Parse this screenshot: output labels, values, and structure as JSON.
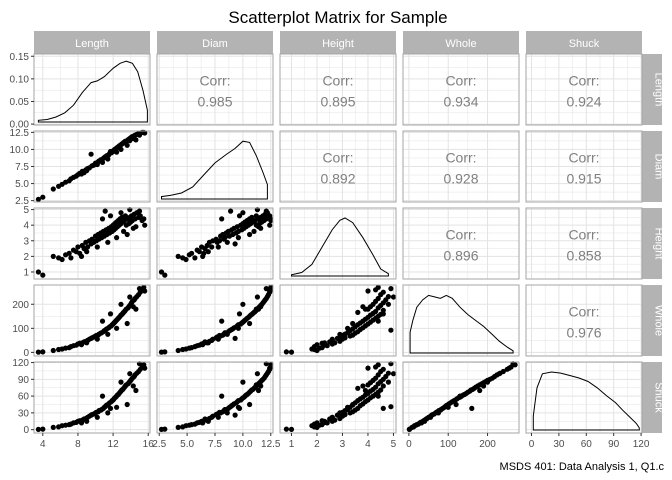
{
  "chart_data": {
    "type": "scatter",
    "title": "Scatterplot Matrix for Sample",
    "caption": "MSDS 401: Data Analysis 1, Q1.c",
    "variables": [
      "Length",
      "Diam",
      "Height",
      "Whole",
      "Shuck"
    ],
    "grid": true,
    "colors": {
      "strip": "#b3b3b3",
      "strip_text": "#ffffff",
      "panel_border": "#a6a6a6",
      "grid": "#e3e3e3",
      "points": "#000000",
      "corr_text": "#808080"
    },
    "axes": {
      "x_ranges": [
        [
          3,
          16.2
        ],
        [
          2.3,
          12.7
        ],
        [
          0.55,
          5.1
        ],
        [
          -15,
          280
        ],
        [
          -6,
          121
        ]
      ],
      "x_ticks": [
        [
          4,
          8,
          12,
          16
        ],
        [
          2.5,
          5.0,
          7.5,
          10.0,
          12.5
        ],
        [
          1,
          2,
          3,
          4,
          5
        ],
        [
          0,
          100,
          200
        ],
        [
          0,
          30,
          60,
          90,
          120
        ]
      ],
      "x_tick_labels": [
        [
          "4",
          "8",
          "12",
          "16"
        ],
        [
          "2.5",
          "5.0",
          "7.5",
          "10.0",
          "12.5"
        ],
        [
          "1",
          "2",
          "3",
          "4",
          "5"
        ],
        [
          "0",
          "100",
          "200"
        ],
        [
          "0",
          "30",
          "60",
          "90",
          "120"
        ]
      ],
      "y_ranges": [
        [
          -0.002,
          0.155
        ],
        [
          2.3,
          12.7
        ],
        [
          0.55,
          5.1
        ],
        [
          -15,
          280
        ],
        [
          -6,
          121
        ]
      ],
      "y_ticks": [
        [
          0.0,
          0.05,
          0.1,
          0.15
        ],
        [
          2.5,
          5.0,
          7.5,
          10.0,
          12.5
        ],
        [
          1,
          2,
          3,
          4,
          5
        ],
        [
          0,
          100,
          200
        ],
        [
          0,
          30,
          60,
          90,
          120
        ]
      ],
      "y_tick_labels": [
        [
          "0.00",
          "0.05",
          "0.10",
          "0.15"
        ],
        [
          "2.5",
          "5.0",
          "7.5",
          "10.0",
          "12.5"
        ],
        [
          "1",
          "2",
          "3",
          "4",
          "5"
        ],
        [
          "0",
          "100",
          "200"
        ],
        [
          "0",
          "30",
          "60",
          "90",
          "120"
        ]
      ]
    },
    "correlations": [
      {
        "row": "Length",
        "col": "Diam",
        "label": "Corr:",
        "value": "0.985"
      },
      {
        "row": "Length",
        "col": "Height",
        "label": "Corr:",
        "value": "0.895"
      },
      {
        "row": "Length",
        "col": "Whole",
        "label": "Corr:",
        "value": "0.934"
      },
      {
        "row": "Length",
        "col": "Shuck",
        "label": "Corr:",
        "value": "0.924"
      },
      {
        "row": "Diam",
        "col": "Height",
        "label": "Corr:",
        "value": "0.892"
      },
      {
        "row": "Diam",
        "col": "Whole",
        "label": "Corr:",
        "value": "0.928"
      },
      {
        "row": "Diam",
        "col": "Shuck",
        "label": "Corr:",
        "value": "0.915"
      },
      {
        "row": "Height",
        "col": "Whole",
        "label": "Corr:",
        "value": "0.896"
      },
      {
        "row": "Height",
        "col": "Shuck",
        "label": "Corr:",
        "value": "0.858"
      },
      {
        "row": "Whole",
        "col": "Shuck",
        "label": "Corr:",
        "value": "0.976"
      }
    ],
    "densities": {
      "Length": [
        [
          3.5,
          0.004
        ],
        [
          4.5,
          0.006
        ],
        [
          5.5,
          0.012
        ],
        [
          6.5,
          0.022
        ],
        [
          7.5,
          0.04
        ],
        [
          8.5,
          0.07
        ],
        [
          9.5,
          0.094
        ],
        [
          10.2,
          0.098
        ],
        [
          11,
          0.108
        ],
        [
          12,
          0.128
        ],
        [
          12.8,
          0.14
        ],
        [
          13.5,
          0.145
        ],
        [
          14.2,
          0.14
        ],
        [
          14.8,
          0.12
        ],
        [
          15.4,
          0.075
        ],
        [
          15.9,
          0.028
        ]
      ],
      "Diam": [
        [
          2.7,
          0.02
        ],
        [
          3.5,
          0.03
        ],
        [
          4.5,
          0.05
        ],
        [
          5.5,
          0.1
        ],
        [
          6.5,
          0.2
        ],
        [
          7.5,
          0.3
        ],
        [
          8.5,
          0.37
        ],
        [
          9.3,
          0.42
        ],
        [
          10,
          0.48
        ],
        [
          10.6,
          0.47
        ],
        [
          11.2,
          0.36
        ],
        [
          11.8,
          0.22
        ],
        [
          12.2,
          0.12
        ]
      ],
      "Height": [
        [
          1.0,
          0.01
        ],
        [
          1.4,
          0.03
        ],
        [
          1.8,
          0.1
        ],
        [
          2.2,
          0.25
        ],
        [
          2.6,
          0.4
        ],
        [
          2.9,
          0.48
        ],
        [
          3.1,
          0.5
        ],
        [
          3.4,
          0.46
        ],
        [
          3.8,
          0.33
        ],
        [
          4.2,
          0.18
        ],
        [
          4.5,
          0.06
        ],
        [
          4.8,
          0.02
        ]
      ],
      "Whole": [
        [
          3,
          0.0028
        ],
        [
          10,
          0.0044
        ],
        [
          20,
          0.0062
        ],
        [
          35,
          0.0072
        ],
        [
          50,
          0.0078
        ],
        [
          65,
          0.0076
        ],
        [
          80,
          0.0074
        ],
        [
          95,
          0.0078
        ],
        [
          110,
          0.0074
        ],
        [
          130,
          0.0062
        ],
        [
          150,
          0.0052
        ],
        [
          170,
          0.0044
        ],
        [
          190,
          0.0036
        ],
        [
          210,
          0.0026
        ],
        [
          230,
          0.0016
        ],
        [
          250,
          0.0008
        ],
        [
          265,
          0.0003
        ]
      ],
      "Shuck": [
        [
          2,
          0.004
        ],
        [
          6,
          0.012
        ],
        [
          12,
          0.016
        ],
        [
          22,
          0.0165
        ],
        [
          32,
          0.0162
        ],
        [
          42,
          0.0155
        ],
        [
          52,
          0.0148
        ],
        [
          62,
          0.0138
        ],
        [
          72,
          0.012
        ],
        [
          82,
          0.0098
        ],
        [
          92,
          0.0078
        ],
        [
          100,
          0.0056
        ],
        [
          108,
          0.0036
        ],
        [
          115,
          0.0018
        ],
        [
          118,
          0.0006
        ]
      ]
    },
    "density_ylims": {
      "Length": [
        0,
        0.155
      ],
      "Diam": [
        0,
        0.54
      ],
      "Height": [
        0,
        0.56
      ],
      "Whole": [
        0,
        0.0088
      ],
      "Shuck": [
        0,
        0.0185
      ]
    },
    "scatter_points": [
      {
        "Length": 3.5,
        "Diam": 2.7,
        "Height": 1.0,
        "Whole": 1,
        "Shuck": 0.5
      },
      {
        "Length": 4.0,
        "Diam": 3.0,
        "Height": 0.8,
        "Whole": 2,
        "Shuck": 1
      },
      {
        "Length": 5.2,
        "Diam": 4.2,
        "Height": 2.0,
        "Whole": 8,
        "Shuck": 4
      },
      {
        "Length": 5.8,
        "Diam": 4.6,
        "Height": 1.9,
        "Whole": 12,
        "Shuck": 5
      },
      {
        "Length": 6.2,
        "Diam": 4.9,
        "Height": 1.8,
        "Whole": 14,
        "Shuck": 7
      },
      {
        "Length": 6.6,
        "Diam": 5.2,
        "Height": 2.1,
        "Whole": 18,
        "Shuck": 8
      },
      {
        "Length": 7.0,
        "Diam": 5.4,
        "Height": 2.2,
        "Whole": 20,
        "Shuck": 9
      },
      {
        "Length": 7.2,
        "Diam": 5.7,
        "Height": 1.9,
        "Whole": 24,
        "Shuck": 10
      },
      {
        "Length": 7.5,
        "Diam": 5.9,
        "Height": 2.4,
        "Whole": 28,
        "Shuck": 12
      },
      {
        "Length": 7.8,
        "Diam": 6.1,
        "Height": 2.3,
        "Whole": 30,
        "Shuck": 13
      },
      {
        "Length": 8.0,
        "Diam": 6.3,
        "Height": 2.6,
        "Whole": 35,
        "Shuck": 15
      },
      {
        "Length": 8.2,
        "Diam": 6.5,
        "Height": 2.2,
        "Whole": 38,
        "Shuck": 16
      },
      {
        "Length": 8.5,
        "Diam": 6.8,
        "Height": 2.7,
        "Whole": 40,
        "Shuck": 17
      },
      {
        "Length": 8.7,
        "Diam": 6.6,
        "Height": 2.5,
        "Whole": 44,
        "Shuck": 19
      },
      {
        "Length": 8.9,
        "Diam": 7.0,
        "Height": 2.9,
        "Whole": 46,
        "Shuck": 20
      },
      {
        "Length": 9.1,
        "Diam": 7.2,
        "Height": 2.6,
        "Whole": 50,
        "Shuck": 22
      },
      {
        "Length": 9.3,
        "Diam": 7.3,
        "Height": 3.0,
        "Whole": 55,
        "Shuck": 24
      },
      {
        "Length": 9.5,
        "Diam": 9.3,
        "Height": 2.8,
        "Whole": 58,
        "Shuck": 26
      },
      {
        "Length": 9.6,
        "Diam": 7.6,
        "Height": 3.1,
        "Whole": 60,
        "Shuck": 27
      },
      {
        "Length": 9.8,
        "Diam": 7.7,
        "Height": 2.9,
        "Whole": 64,
        "Shuck": 28
      },
      {
        "Length": 10.0,
        "Diam": 8.0,
        "Height": 3.3,
        "Whole": 68,
        "Shuck": 30
      },
      {
        "Length": 10.1,
        "Diam": 7.9,
        "Height": 3.0,
        "Whole": 70,
        "Shuck": 31
      },
      {
        "Length": 10.3,
        "Diam": 8.2,
        "Height": 3.4,
        "Whole": 72,
        "Shuck": 32
      },
      {
        "Length": 10.4,
        "Diam": 8.3,
        "Height": 3.1,
        "Whole": 76,
        "Shuck": 34
      },
      {
        "Length": 10.6,
        "Diam": 8.5,
        "Height": 3.5,
        "Whole": 80,
        "Shuck": 35
      },
      {
        "Length": 10.7,
        "Diam": 8.4,
        "Height": 3.2,
        "Whole": 82,
        "Shuck": 36
      },
      {
        "Length": 10.9,
        "Diam": 8.7,
        "Height": 3.6,
        "Whole": 86,
        "Shuck": 38
      },
      {
        "Length": 11.0,
        "Diam": 8.8,
        "Height": 3.3,
        "Whole": 90,
        "Shuck": 40
      },
      {
        "Length": 11.1,
        "Diam": 8.9,
        "Height": 4.9,
        "Whole": 92,
        "Shuck": 41
      },
      {
        "Length": 11.2,
        "Diam": 9.0,
        "Height": 3.7,
        "Whole": 95,
        "Shuck": 43
      },
      {
        "Length": 11.3,
        "Diam": 9.1,
        "Height": 3.4,
        "Whole": 98,
        "Shuck": 44
      },
      {
        "Length": 11.5,
        "Diam": 9.2,
        "Height": 3.8,
        "Whole": 102,
        "Shuck": 46
      },
      {
        "Length": 11.6,
        "Diam": 9.4,
        "Height": 3.5,
        "Whole": 106,
        "Shuck": 48
      },
      {
        "Length": 11.8,
        "Diam": 9.5,
        "Height": 3.9,
        "Whole": 110,
        "Shuck": 50
      },
      {
        "Length": 11.9,
        "Diam": 9.6,
        "Height": 3.6,
        "Whole": 115,
        "Shuck": 52
      },
      {
        "Length": 12.0,
        "Diam": 9.8,
        "Height": 4.0,
        "Whole": 118,
        "Shuck": 53
      },
      {
        "Length": 12.1,
        "Diam": 9.9,
        "Height": 3.7,
        "Whole": 122,
        "Shuck": 55
      },
      {
        "Length": 12.2,
        "Diam": 10.0,
        "Height": 4.1,
        "Whole": 126,
        "Shuck": 57
      },
      {
        "Length": 12.3,
        "Diam": 10.1,
        "Height": 3.8,
        "Whole": 130,
        "Shuck": 58
      },
      {
        "Length": 12.4,
        "Diam": 10.2,
        "Height": 4.2,
        "Whole": 134,
        "Shuck": 60
      },
      {
        "Length": 12.5,
        "Diam": 10.3,
        "Height": 3.9,
        "Whole": 138,
        "Shuck": 62
      },
      {
        "Length": 12.6,
        "Diam": 10.4,
        "Height": 4.3,
        "Whole": 142,
        "Shuck": 63
      },
      {
        "Length": 12.7,
        "Diam": 10.5,
        "Height": 4.0,
        "Whole": 146,
        "Shuck": 65
      },
      {
        "Length": 12.8,
        "Diam": 10.6,
        "Height": 4.4,
        "Whole": 150,
        "Shuck": 67
      },
      {
        "Length": 12.9,
        "Diam": 10.7,
        "Height": 4.1,
        "Whole": 155,
        "Shuck": 69
      },
      {
        "Length": 13.0,
        "Diam": 10.8,
        "Height": 4.5,
        "Whole": 158,
        "Shuck": 71
      },
      {
        "Length": 13.1,
        "Diam": 10.9,
        "Height": 4.2,
        "Whole": 162,
        "Shuck": 72
      },
      {
        "Length": 13.2,
        "Diam": 11.0,
        "Height": 3.6,
        "Whole": 166,
        "Shuck": 74
      },
      {
        "Length": 13.3,
        "Diam": 11.1,
        "Height": 4.3,
        "Whole": 170,
        "Shuck": 76
      },
      {
        "Length": 13.4,
        "Diam": 11.2,
        "Height": 4.6,
        "Whole": 175,
        "Shuck": 78
      },
      {
        "Length": 13.5,
        "Diam": 11.2,
        "Height": 4.0,
        "Whole": 180,
        "Shuck": 80
      },
      {
        "Length": 13.7,
        "Diam": 11.4,
        "Height": 4.4,
        "Whole": 185,
        "Shuck": 82
      },
      {
        "Length": 13.8,
        "Diam": 11.5,
        "Height": 4.1,
        "Whole": 190,
        "Shuck": 84
      },
      {
        "Length": 13.9,
        "Diam": 11.6,
        "Height": 4.5,
        "Whole": 195,
        "Shuck": 86
      },
      {
        "Length": 14.0,
        "Diam": 11.7,
        "Height": 4.2,
        "Whole": 200,
        "Shuck": 88
      },
      {
        "Length": 14.1,
        "Diam": 11.8,
        "Height": 4.6,
        "Whole": 206,
        "Shuck": 90
      },
      {
        "Length": 14.2,
        "Diam": 11.9,
        "Height": 4.3,
        "Whole": 212,
        "Shuck": 92
      },
      {
        "Length": 14.4,
        "Diam": 12.0,
        "Height": 4.7,
        "Whole": 218,
        "Shuck": 95
      },
      {
        "Length": 14.5,
        "Diam": 12.1,
        "Height": 4.4,
        "Whole": 224,
        "Shuck": 98
      },
      {
        "Length": 14.7,
        "Diam": 12.2,
        "Height": 4.8,
        "Whole": 232,
        "Shuck": 101
      },
      {
        "Length": 14.9,
        "Diam": 12.3,
        "Height": 4.5,
        "Whole": 240,
        "Shuck": 104
      },
      {
        "Length": 15.1,
        "Diam": 12.4,
        "Height": 4.6,
        "Whole": 250,
        "Shuck": 108
      },
      {
        "Length": 15.3,
        "Diam": 12.5,
        "Height": 4.3,
        "Whole": 260,
        "Shuck": 112
      },
      {
        "Length": 15.5,
        "Diam": 12.5,
        "Height": 4.4,
        "Whole": 270,
        "Shuck": 116
      },
      {
        "Length": 15.6,
        "Diam": 12.4,
        "Height": 4.0,
        "Whole": 255,
        "Shuck": 110
      },
      {
        "Length": 14.6,
        "Diam": 11.4,
        "Height": 3.9,
        "Whole": 180,
        "Shuck": 70
      },
      {
        "Length": 13.6,
        "Diam": 10.6,
        "Height": 3.4,
        "Whole": 120,
        "Shuck": 45
      },
      {
        "Length": 12.4,
        "Diam": 9.6,
        "Height": 3.2,
        "Whole": 100,
        "Shuck": 40
      },
      {
        "Length": 11.4,
        "Diam": 8.6,
        "Height": 2.9,
        "Whole": 75,
        "Shuck": 30
      },
      {
        "Length": 10.2,
        "Diam": 7.8,
        "Height": 2.6,
        "Whole": 55,
        "Shuck": 22
      },
      {
        "Length": 9.0,
        "Diam": 6.9,
        "Height": 2.3,
        "Whole": 40,
        "Shuck": 15
      },
      {
        "Length": 8.4,
        "Diam": 6.4,
        "Height": 2.0,
        "Whole": 32,
        "Shuck": 12
      },
      {
        "Length": 13.9,
        "Diam": 11.3,
        "Height": 5.0,
        "Whole": 230,
        "Shuck": 100
      },
      {
        "Length": 12.9,
        "Diam": 10.0,
        "Height": 4.8,
        "Whole": 200,
        "Shuck": 85
      },
      {
        "Length": 11.7,
        "Diam": 9.7,
        "Height": 4.6,
        "Whole": 160,
        "Shuck": 38
      },
      {
        "Length": 10.8,
        "Diam": 8.1,
        "Height": 4.4,
        "Whole": 130,
        "Shuck": 60
      },
      {
        "Length": 14.3,
        "Diam": 11.6,
        "Height": 3.8,
        "Whole": 190,
        "Shuck": 78
      },
      {
        "Length": 15.0,
        "Diam": 12.1,
        "Height": 4.9,
        "Whole": 265,
        "Shuck": 118
      }
    ]
  }
}
